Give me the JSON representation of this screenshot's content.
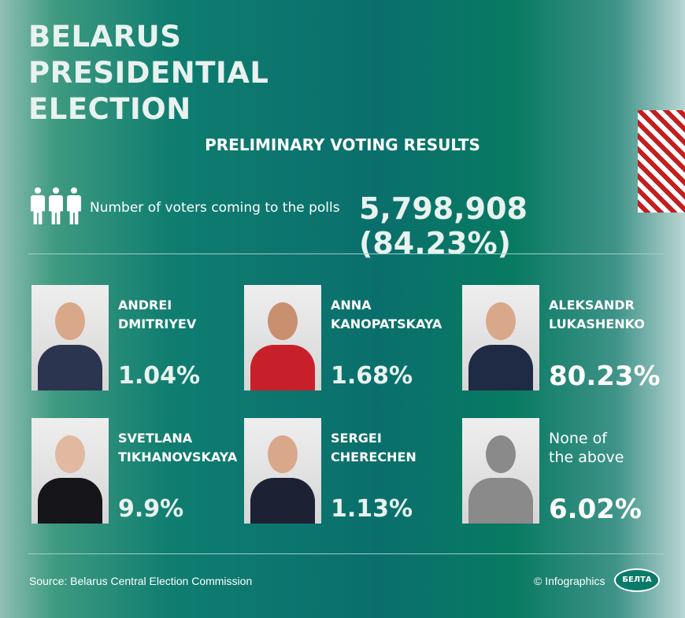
{
  "title": "BELARUS PRESIDENTIAL ELECTION",
  "subtitle": "PRELIMINARY VOTING RESULTS",
  "turnout": {
    "label": "Number of voters coming to the polls",
    "value": "5,798,908 (84.23%)"
  },
  "candidates": [
    {
      "name1": "ANDREI",
      "name2": "DMITRIYEV",
      "percent": "1.04%"
    },
    {
      "name1": "ANNA",
      "name2": "KANOPATSKAYA",
      "percent": "1.68%"
    },
    {
      "name1": "ALEKSANDR",
      "name2": "LUKASHENKO",
      "percent": "80.23%"
    },
    {
      "name1": "SVETLANA",
      "name2": "TIKHANOVSKAYA",
      "percent": "9.9%"
    },
    {
      "name1": "SERGEI",
      "name2": "CHERECHEN",
      "percent": "1.13%"
    },
    {
      "name1": "None of",
      "name2": "the above",
      "percent": "6.02%"
    }
  ],
  "footer": {
    "source": "Source: Belarus Central Election Commission",
    "credit": "© Infographics",
    "logo": "БЕЛТА"
  },
  "colors": {
    "flag_red": "#d42a2a",
    "flag_green": "#2fa83e",
    "background": "#0a6f6c"
  }
}
